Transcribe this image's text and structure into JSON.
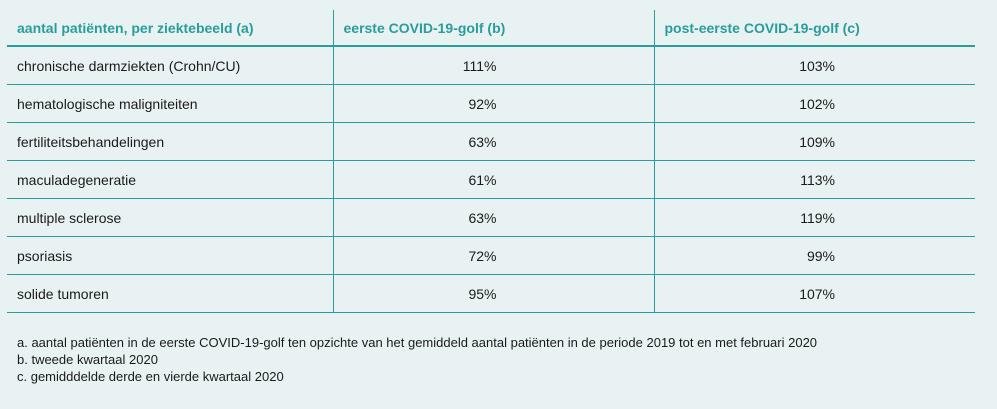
{
  "table": {
    "headers": [
      "aantal patiënten, per ziektebeeld (a)",
      "eerste COVID-19-golf (b)",
      "post-eerste COVID-19-golf (c)"
    ],
    "rows": [
      {
        "label": "chronische darmziekten (Crohn/CU)",
        "first": "111%",
        "post": "103%"
      },
      {
        "label": "hematologische maligniteiten",
        "first": "92%",
        "post": "102%"
      },
      {
        "label": "fertiliteitsbehandelingen",
        "first": "63%",
        "post": "109%"
      },
      {
        "label": "maculadegeneratie",
        "first": "61%",
        "post": "113%"
      },
      {
        "label": "multiple sclerose",
        "first": "63%",
        "post": "119%"
      },
      {
        "label": "psoriasis",
        "first": "72%",
        "post": "99%"
      },
      {
        "label": "solide tumoren",
        "first": "95%",
        "post": "107%"
      }
    ]
  },
  "notes": [
    "a. aantal patiënten in de eerste COVID-19-golf ten opzichte van het gemiddeld aantal patiënten in de periode 2019 tot en met februari 2020",
    "b. tweede kwartaal 2020",
    "c. gemidddelde derde en vierde kwartaal 2020"
  ],
  "colors": {
    "accent": "#2a9d9b",
    "background": "#e9f2f2"
  }
}
